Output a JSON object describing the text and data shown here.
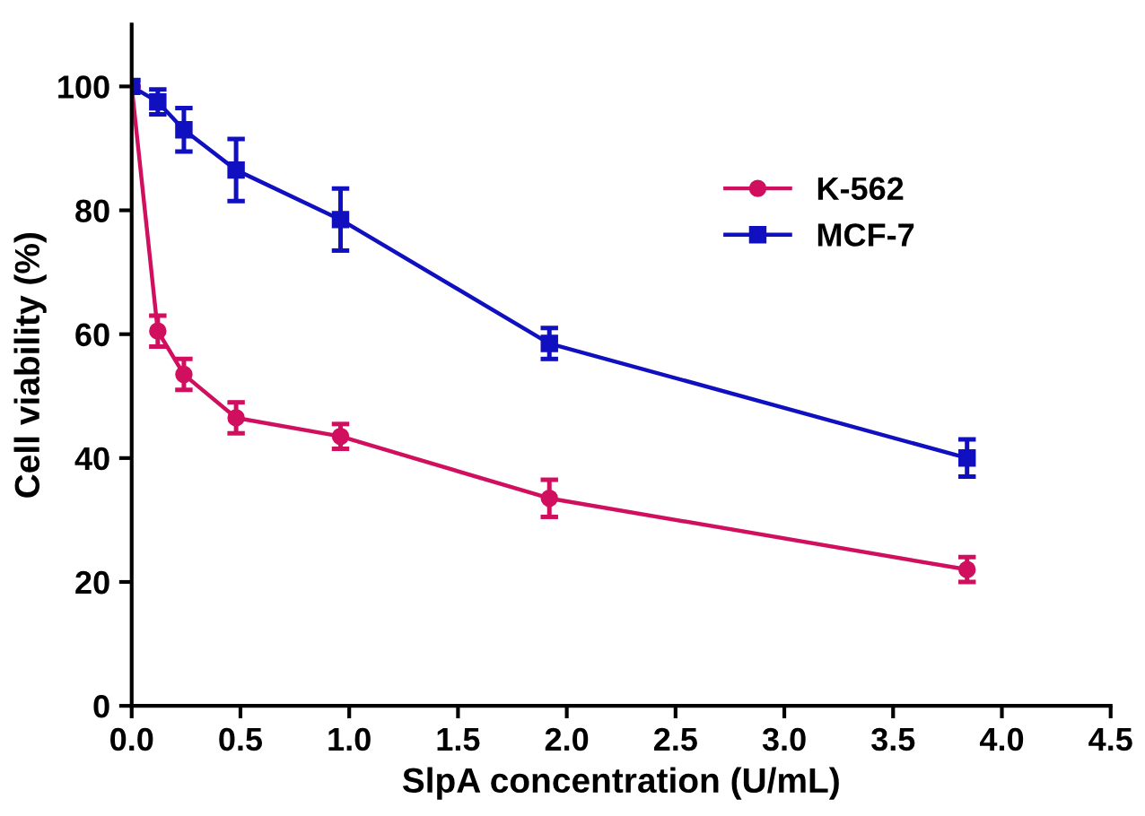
{
  "chart_data": {
    "type": "line",
    "xlabel": "SlpA concentration (U/mL)",
    "ylabel": "Cell viability (%)",
    "x": [
      0,
      0.12,
      0.24,
      0.48,
      0.96,
      1.92,
      3.84
    ],
    "series": [
      {
        "name": "K-562",
        "color": "#d0105e",
        "marker": "circle",
        "values": [
          100,
          60.5,
          53.5,
          46.5,
          43.5,
          33.5,
          22
        ],
        "errors": [
          null,
          2.5,
          2.5,
          2.5,
          2,
          3,
          2
        ]
      },
      {
        "name": "MCF-7",
        "color": "#1010c0",
        "marker": "square",
        "values": [
          100,
          97.5,
          93,
          86.5,
          78.5,
          58.5,
          40
        ],
        "errors": [
          1,
          2,
          3.5,
          5,
          5,
          2.5,
          3
        ]
      }
    ],
    "xlim": [
      0,
      4.5
    ],
    "xticks": [
      {
        "value": 0,
        "label": "0.0"
      },
      0.5,
      {
        "value": 1,
        "label": "1.0"
      },
      1.5,
      {
        "value": 2,
        "label": "2.0"
      },
      2.5,
      {
        "value": 3,
        "label": "3.0"
      },
      3.5,
      {
        "value": 4,
        "label": "4.0"
      },
      4.5
    ],
    "ylim": [
      0,
      110
    ],
    "yticks": [
      0,
      20,
      40,
      60,
      80,
      100
    ],
    "grid": false,
    "legend": "top right",
    "line_style": "solid"
  }
}
